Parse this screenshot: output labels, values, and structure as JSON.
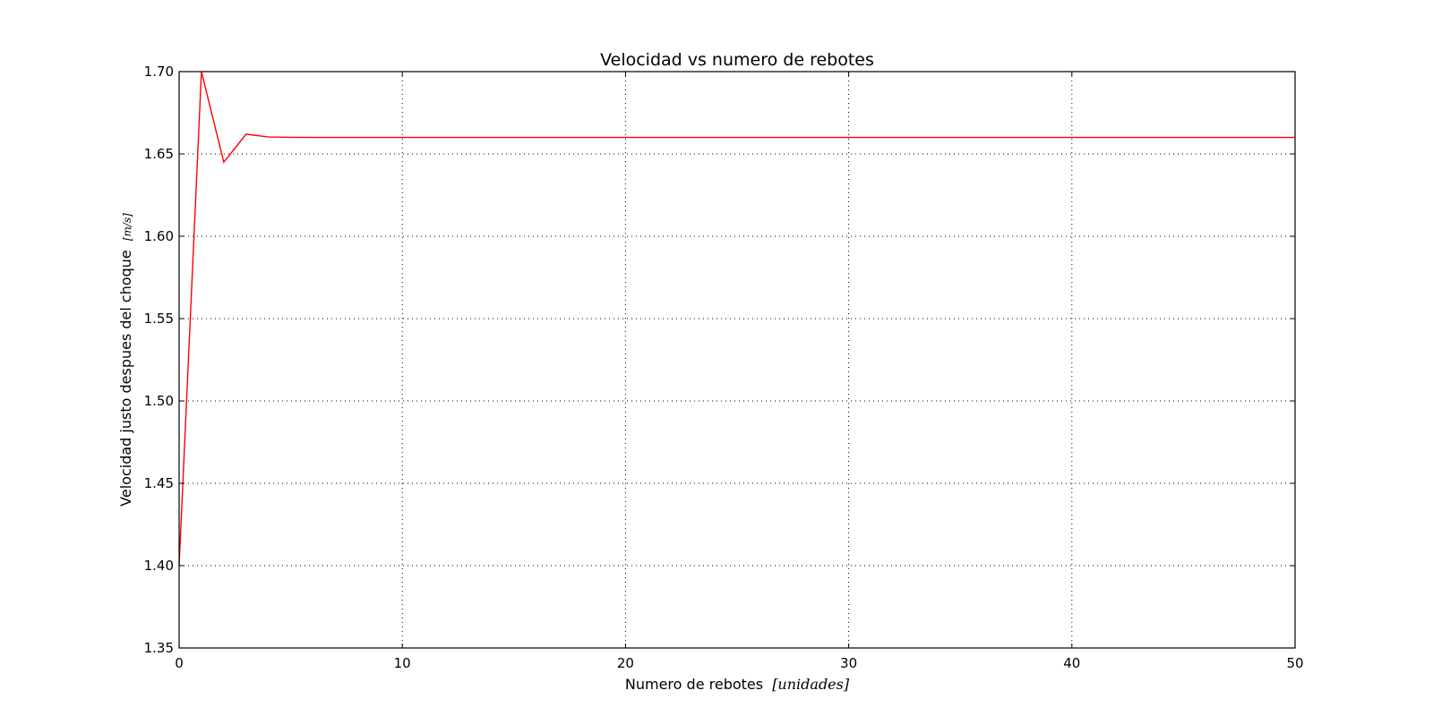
{
  "chart_data": {
    "type": "line",
    "title": "Velocidad vs numero de rebotes",
    "xlabel": "Numero de rebotes",
    "xlabel_unit": "[unidades]",
    "ylabel": "Velocidad justo despues del choque",
    "ylabel_unit": "[m/s]",
    "xlim": [
      0,
      50
    ],
    "ylim": [
      1.35,
      1.7
    ],
    "xticks": [
      0,
      10,
      20,
      30,
      40,
      50
    ],
    "xtick_labels": [
      "0",
      "10",
      "20",
      "30",
      "40",
      "50"
    ],
    "yticks": [
      1.35,
      1.4,
      1.45,
      1.5,
      1.55,
      1.6,
      1.65,
      1.7
    ],
    "ytick_labels": [
      "1.35",
      "1.40",
      "1.45",
      "1.50",
      "1.55",
      "1.60",
      "1.65",
      "1.70"
    ],
    "grid": true,
    "series": [
      {
        "color": "#ff0000",
        "x": [
          0,
          1,
          2,
          3,
          4,
          5,
          6,
          7,
          8,
          9,
          10,
          11,
          12,
          13,
          14,
          15,
          16,
          17,
          18,
          19,
          20,
          21,
          22,
          23,
          24,
          25,
          26,
          27,
          28,
          29,
          30,
          31,
          32,
          33,
          34,
          35,
          36,
          37,
          38,
          39,
          40,
          41,
          42,
          43,
          44,
          45,
          46,
          47,
          48,
          49,
          50
        ],
        "y": [
          1.4,
          1.7,
          1.645,
          1.662,
          1.6603,
          1.6601,
          1.66,
          1.66,
          1.66,
          1.66,
          1.66,
          1.66,
          1.66,
          1.66,
          1.66,
          1.66,
          1.66,
          1.66,
          1.66,
          1.66,
          1.66,
          1.66,
          1.66,
          1.66,
          1.66,
          1.66,
          1.66,
          1.66,
          1.66,
          1.66,
          1.66,
          1.66,
          1.66,
          1.66,
          1.66,
          1.66,
          1.66,
          1.66,
          1.66,
          1.66,
          1.66,
          1.66,
          1.66,
          1.66,
          1.66,
          1.66,
          1.66,
          1.66,
          1.66,
          1.66,
          1.66
        ]
      }
    ]
  }
}
